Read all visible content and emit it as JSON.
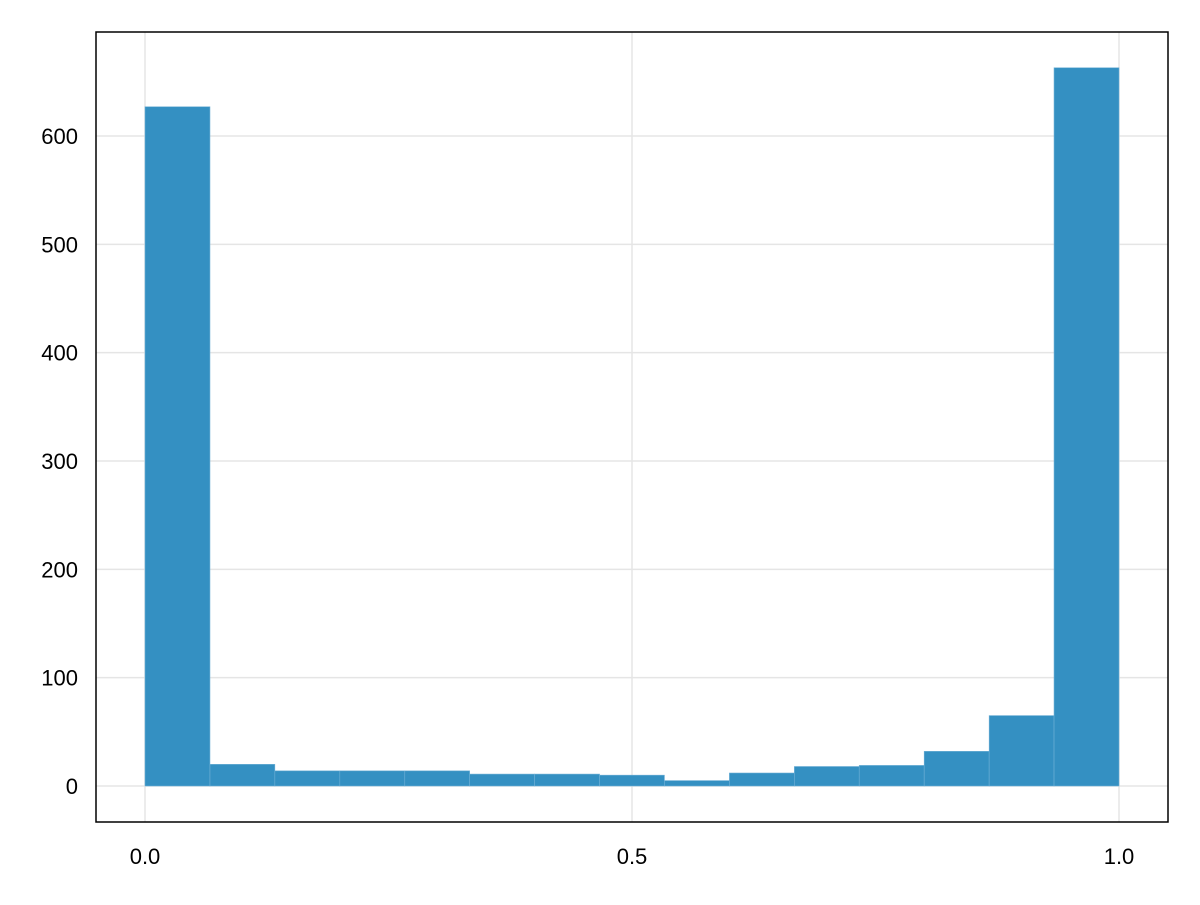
{
  "chart_data": {
    "type": "bar",
    "subtype": "histogram",
    "title": "",
    "xlabel": "",
    "ylabel": "",
    "bin_edges": [
      0.0,
      0.0667,
      0.1333,
      0.2,
      0.2667,
      0.3333,
      0.4,
      0.4667,
      0.5333,
      0.6,
      0.6667,
      0.7333,
      0.8,
      0.8667,
      0.9333,
      1.0
    ],
    "values": [
      627,
      20,
      14,
      14,
      14,
      11,
      11,
      10,
      5,
      12,
      18,
      19,
      32,
      65,
      663
    ],
    "xlim": [
      -0.05,
      1.05
    ],
    "ylim": [
      -33,
      695
    ],
    "xticks": [
      0.0,
      0.5,
      1.0
    ],
    "xtick_labels": [
      "0.0",
      "0.5",
      "1.0"
    ],
    "yticks": [
      0,
      100,
      200,
      300,
      400,
      500,
      600
    ],
    "ytick_labels": [
      "0",
      "100",
      "200",
      "300",
      "400",
      "500",
      "600"
    ],
    "grid": true,
    "bar_color": "#3490c2",
    "grid_color": "#e5e5e5"
  }
}
